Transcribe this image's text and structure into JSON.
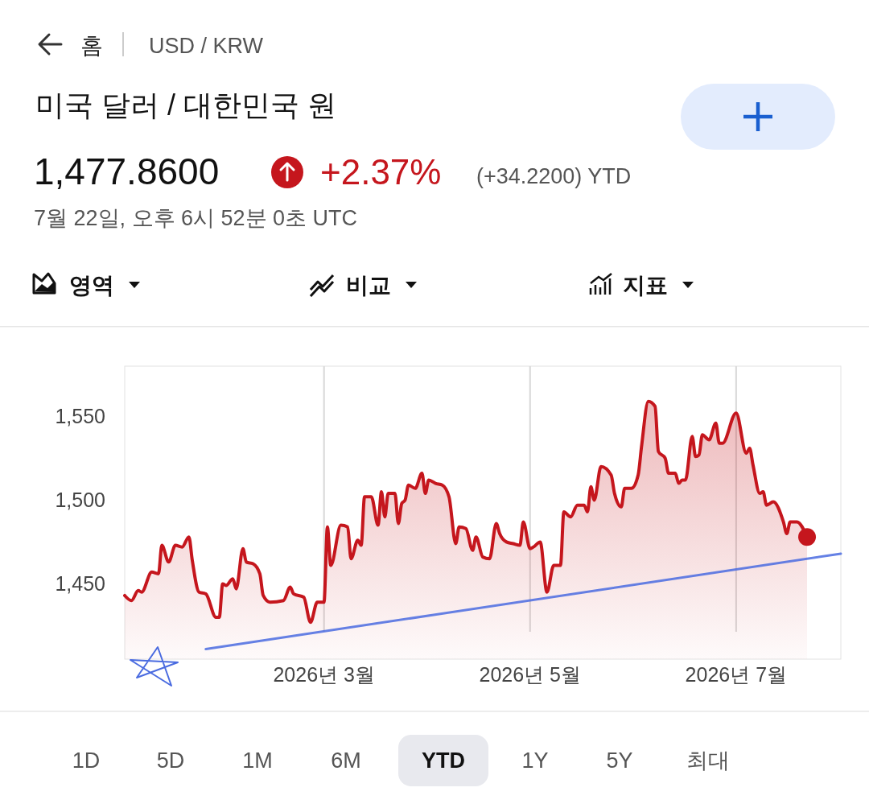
{
  "chart_data": {
    "type": "area",
    "title": "미국 달러 / 대한민국 원",
    "annotations": [
      "홈",
      "USD / KRW",
      "1,477.8600",
      "+2.37%",
      "(+34.2200) YTD",
      "7월 22일, 오후 6시 52분 0초 UTC",
      "영역",
      "비교",
      "지표",
      "1D",
      "5D",
      "1M",
      "6M",
      "YTD",
      "1Y",
      "5Y",
      "최대"
    ],
    "series": [
      {
        "color": "#c5161d",
        "x": [
          "2026-01-01",
          "2026-01-03",
          "2026-01-05",
          "2026-01-06",
          "2026-01-09",
          "2026-01-11",
          "2026-01-12",
          "2026-01-14",
          "2026-01-16",
          "2026-01-18",
          "2026-01-20",
          "2026-01-21",
          "2026-01-23",
          "2026-01-25",
          "2026-01-28",
          "2026-01-29",
          "2026-01-30",
          "2026-01-31",
          "2026-02-02",
          "2026-02-03",
          "2026-02-05",
          "2026-02-06",
          "2026-02-08",
          "2026-02-10",
          "2026-02-11",
          "2026-02-13",
          "2026-02-17",
          "2026-02-19",
          "2026-02-20",
          "2026-02-23",
          "2026-02-25",
          "2026-02-27",
          "2026-03-01",
          "2026-03-02",
          "2026-03-03",
          "2026-03-06",
          "2026-03-08",
          "2026-03-09",
          "2026-03-11",
          "2026-03-12",
          "2026-03-13",
          "2026-03-15",
          "2026-03-17",
          "2026-03-18",
          "2026-03-19",
          "2026-03-20",
          "2026-03-22",
          "2026-03-23",
          "2026-03-24",
          "2026-03-25",
          "2026-03-26",
          "2026-03-28",
          "2026-03-30",
          "2026-03-31",
          "2026-04-01",
          "2026-04-03",
          "2026-04-05",
          "2026-04-07",
          "2026-04-09",
          "2026-04-10",
          "2026-04-12",
          "2026-04-14",
          "2026-04-15",
          "2026-04-17",
          "2026-04-19",
          "2026-04-21",
          "2026-04-22",
          "2026-04-24",
          "2026-04-26",
          "2026-04-28",
          "2026-04-29",
          "2026-05-01",
          "2026-05-02",
          "2026-05-04",
          "2026-05-06",
          "2026-05-08",
          "2026-05-10",
          "2026-05-11",
          "2026-05-13",
          "2026-05-15",
          "2026-05-17",
          "2026-05-18",
          "2026-05-19",
          "2026-05-20",
          "2026-05-22",
          "2026-05-25",
          "2026-05-26",
          "2026-05-28",
          "2026-05-29",
          "2026-05-31",
          "2026-06-02",
          "2026-06-03",
          "2026-06-05",
          "2026-06-07",
          "2026-06-08",
          "2026-06-10",
          "2026-06-11",
          "2026-06-13",
          "2026-06-14",
          "2026-06-15",
          "2026-06-16",
          "2026-06-18",
          "2026-06-19",
          "2026-06-20",
          "2026-06-21",
          "2026-06-23",
          "2026-06-25",
          "2026-06-26",
          "2026-06-27",
          "2026-07-01",
          "2026-07-04",
          "2026-07-05",
          "2026-07-06",
          "2026-07-08",
          "2026-07-09",
          "2026-07-10",
          "2026-07-12",
          "2026-07-15",
          "2026-07-16",
          "2026-07-17",
          "2026-07-19",
          "2026-07-22"
        ],
        "values": [
          1443,
          1440,
          1446,
          1445,
          1457,
          1456,
          1473,
          1463,
          1473,
          1472,
          1478,
          1464,
          1445,
          1444,
          1430,
          1430,
          1450,
          1449,
          1453,
          1447,
          1471,
          1463,
          1462,
          1456,
          1443,
          1439,
          1440,
          1448,
          1444,
          1442,
          1427,
          1439,
          1439,
          1484,
          1461,
          1485,
          1484,
          1465,
          1476,
          1473,
          1502,
          1502,
          1485,
          1505,
          1490,
          1504,
          1504,
          1486,
          1498,
          1500,
          1509,
          1507,
          1516,
          1504,
          1512,
          1510,
          1509,
          1502,
          1474,
          1484,
          1483,
          1470,
          1478,
          1466,
          1465,
          1486,
          1480,
          1475,
          1474,
          1473,
          1487,
          1471,
          1472,
          1475,
          1445,
          1461,
          1461,
          1493,
          1490,
          1497,
          1497,
          1493,
          1508,
          1500,
          1520,
          1515,
          1504,
          1496,
          1507,
          1507,
          1515,
          1532,
          1559,
          1556,
          1529,
          1525,
          1516,
          1516,
          1510,
          1512,
          1512,
          1538,
          1526,
          1527,
          1539,
          1536,
          1546,
          1534,
          1534,
          1552,
          1528,
          1531,
          1521,
          1504,
          1505,
          1497,
          1499,
          1487,
          1480,
          1487,
          1487,
          1478
        ]
      },
      {
        "type": "scatter",
        "color": "#c5161d",
        "x": [
          "2026-07-22"
        ],
        "values": [
          1478
        ]
      },
      {
        "type": "line",
        "color": "#4a6be0",
        "x": [
          "2026-01-25",
          "2026-08-01"
        ],
        "values": [
          1411,
          1468
        ]
      }
    ],
    "xlim": [
      "2026-01-01",
      "2026-08-01"
    ],
    "xticks": [
      {
        "value": "2026-03-01",
        "label": "2026년 3월"
      },
      {
        "value": "2026-05-01",
        "label": "2026년 5월"
      },
      {
        "value": "2026-07-01",
        "label": "2026년 7월"
      }
    ],
    "ylim": [
      1405,
      1580
    ],
    "yticks": [
      {
        "value": 1450,
        "label": "1,450"
      },
      {
        "value": 1500,
        "label": "1,500"
      },
      {
        "value": 1550,
        "label": "1,550"
      }
    ],
    "grid": "x"
  }
}
